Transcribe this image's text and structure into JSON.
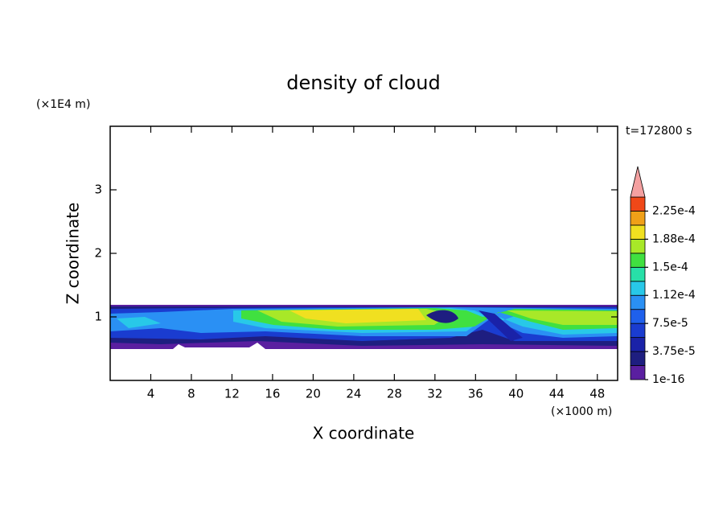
{
  "chart_data": {
    "type": "contour",
    "title": "density of cloud",
    "xlabel": "X coordinate",
    "ylabel": "Z coordinate",
    "x_unit": "(×1000 m)",
    "y_unit": "(×1E4 m)",
    "annotation": "t=172800 s",
    "xlim": [
      0,
      50
    ],
    "xticks": [
      4,
      8,
      12,
      16,
      20,
      24,
      28,
      32,
      36,
      40,
      44,
      48
    ],
    "ylim": [
      0,
      4
    ],
    "yticks": [
      1,
      2,
      3
    ],
    "colorbar": {
      "lim": [
        1e-16,
        0.00024375
      ],
      "extend": "max",
      "extend_color": "#f4a0a0",
      "colors": [
        "#5a1fa0",
        "#1e1e80",
        "#1a22a8",
        "#1a3cd0",
        "#1f60ec",
        "#2a90f4",
        "#28c8e8",
        "#28e0a8",
        "#40e040",
        "#a8e828",
        "#f0e020",
        "#f0a018",
        "#f04818"
      ],
      "ticks": [
        1e-16,
        {
          "value": 3.75e-05,
          "label": "3.75e-5"
        },
        {
          "value": 7.5e-05,
          "label": "7.5e-5"
        },
        {
          "value": 0.0001125,
          "label": "1.12e-4"
        },
        {
          "value": 0.00015,
          "label": "1.5e-4"
        },
        {
          "value": 0.0001875,
          "label": "1.88e-4"
        },
        {
          "value": 0.000225,
          "label": "2.25e-4"
        }
      ]
    }
  }
}
